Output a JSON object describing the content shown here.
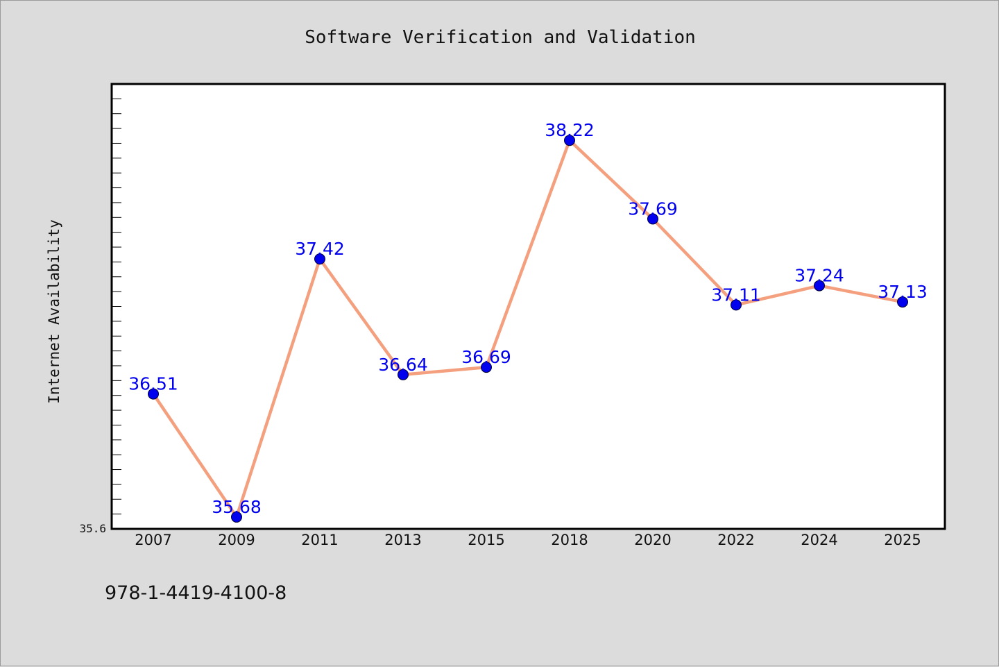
{
  "page": {
    "isbn": "978-1-4419-4100-8"
  },
  "colors": {
    "background": "#dcdcdc",
    "plot_background": "#ffffff",
    "line": "#f4a07f",
    "marker": "#0000ee",
    "data_label": "#0000ee"
  },
  "chart_data": {
    "type": "line",
    "title": "Software Verification and Validation",
    "xlabel": "",
    "ylabel": "Internet Availability",
    "categories": [
      "2007",
      "2009",
      "2011",
      "2013",
      "2015",
      "2018",
      "2020",
      "2022",
      "2024",
      "2025"
    ],
    "series": [
      {
        "values": [
          36.51,
          35.68,
          37.42,
          36.64,
          36.69,
          38.22,
          37.69,
          37.11,
          37.24,
          37.13
        ]
      }
    ],
    "data_labels": [
      "36.51",
      "35.68",
      "37.42",
      "36.64",
      "36.69",
      "38.22",
      "37.69",
      "37.11",
      "37.24",
      "37.13"
    ],
    "ylim": [
      35.6,
      38.6
    ],
    "y_ticks": [
      {
        "value": 35.6,
        "label": "35.6"
      }
    ],
    "y_minor_step": 0.1,
    "grid": false,
    "legend": "none"
  }
}
